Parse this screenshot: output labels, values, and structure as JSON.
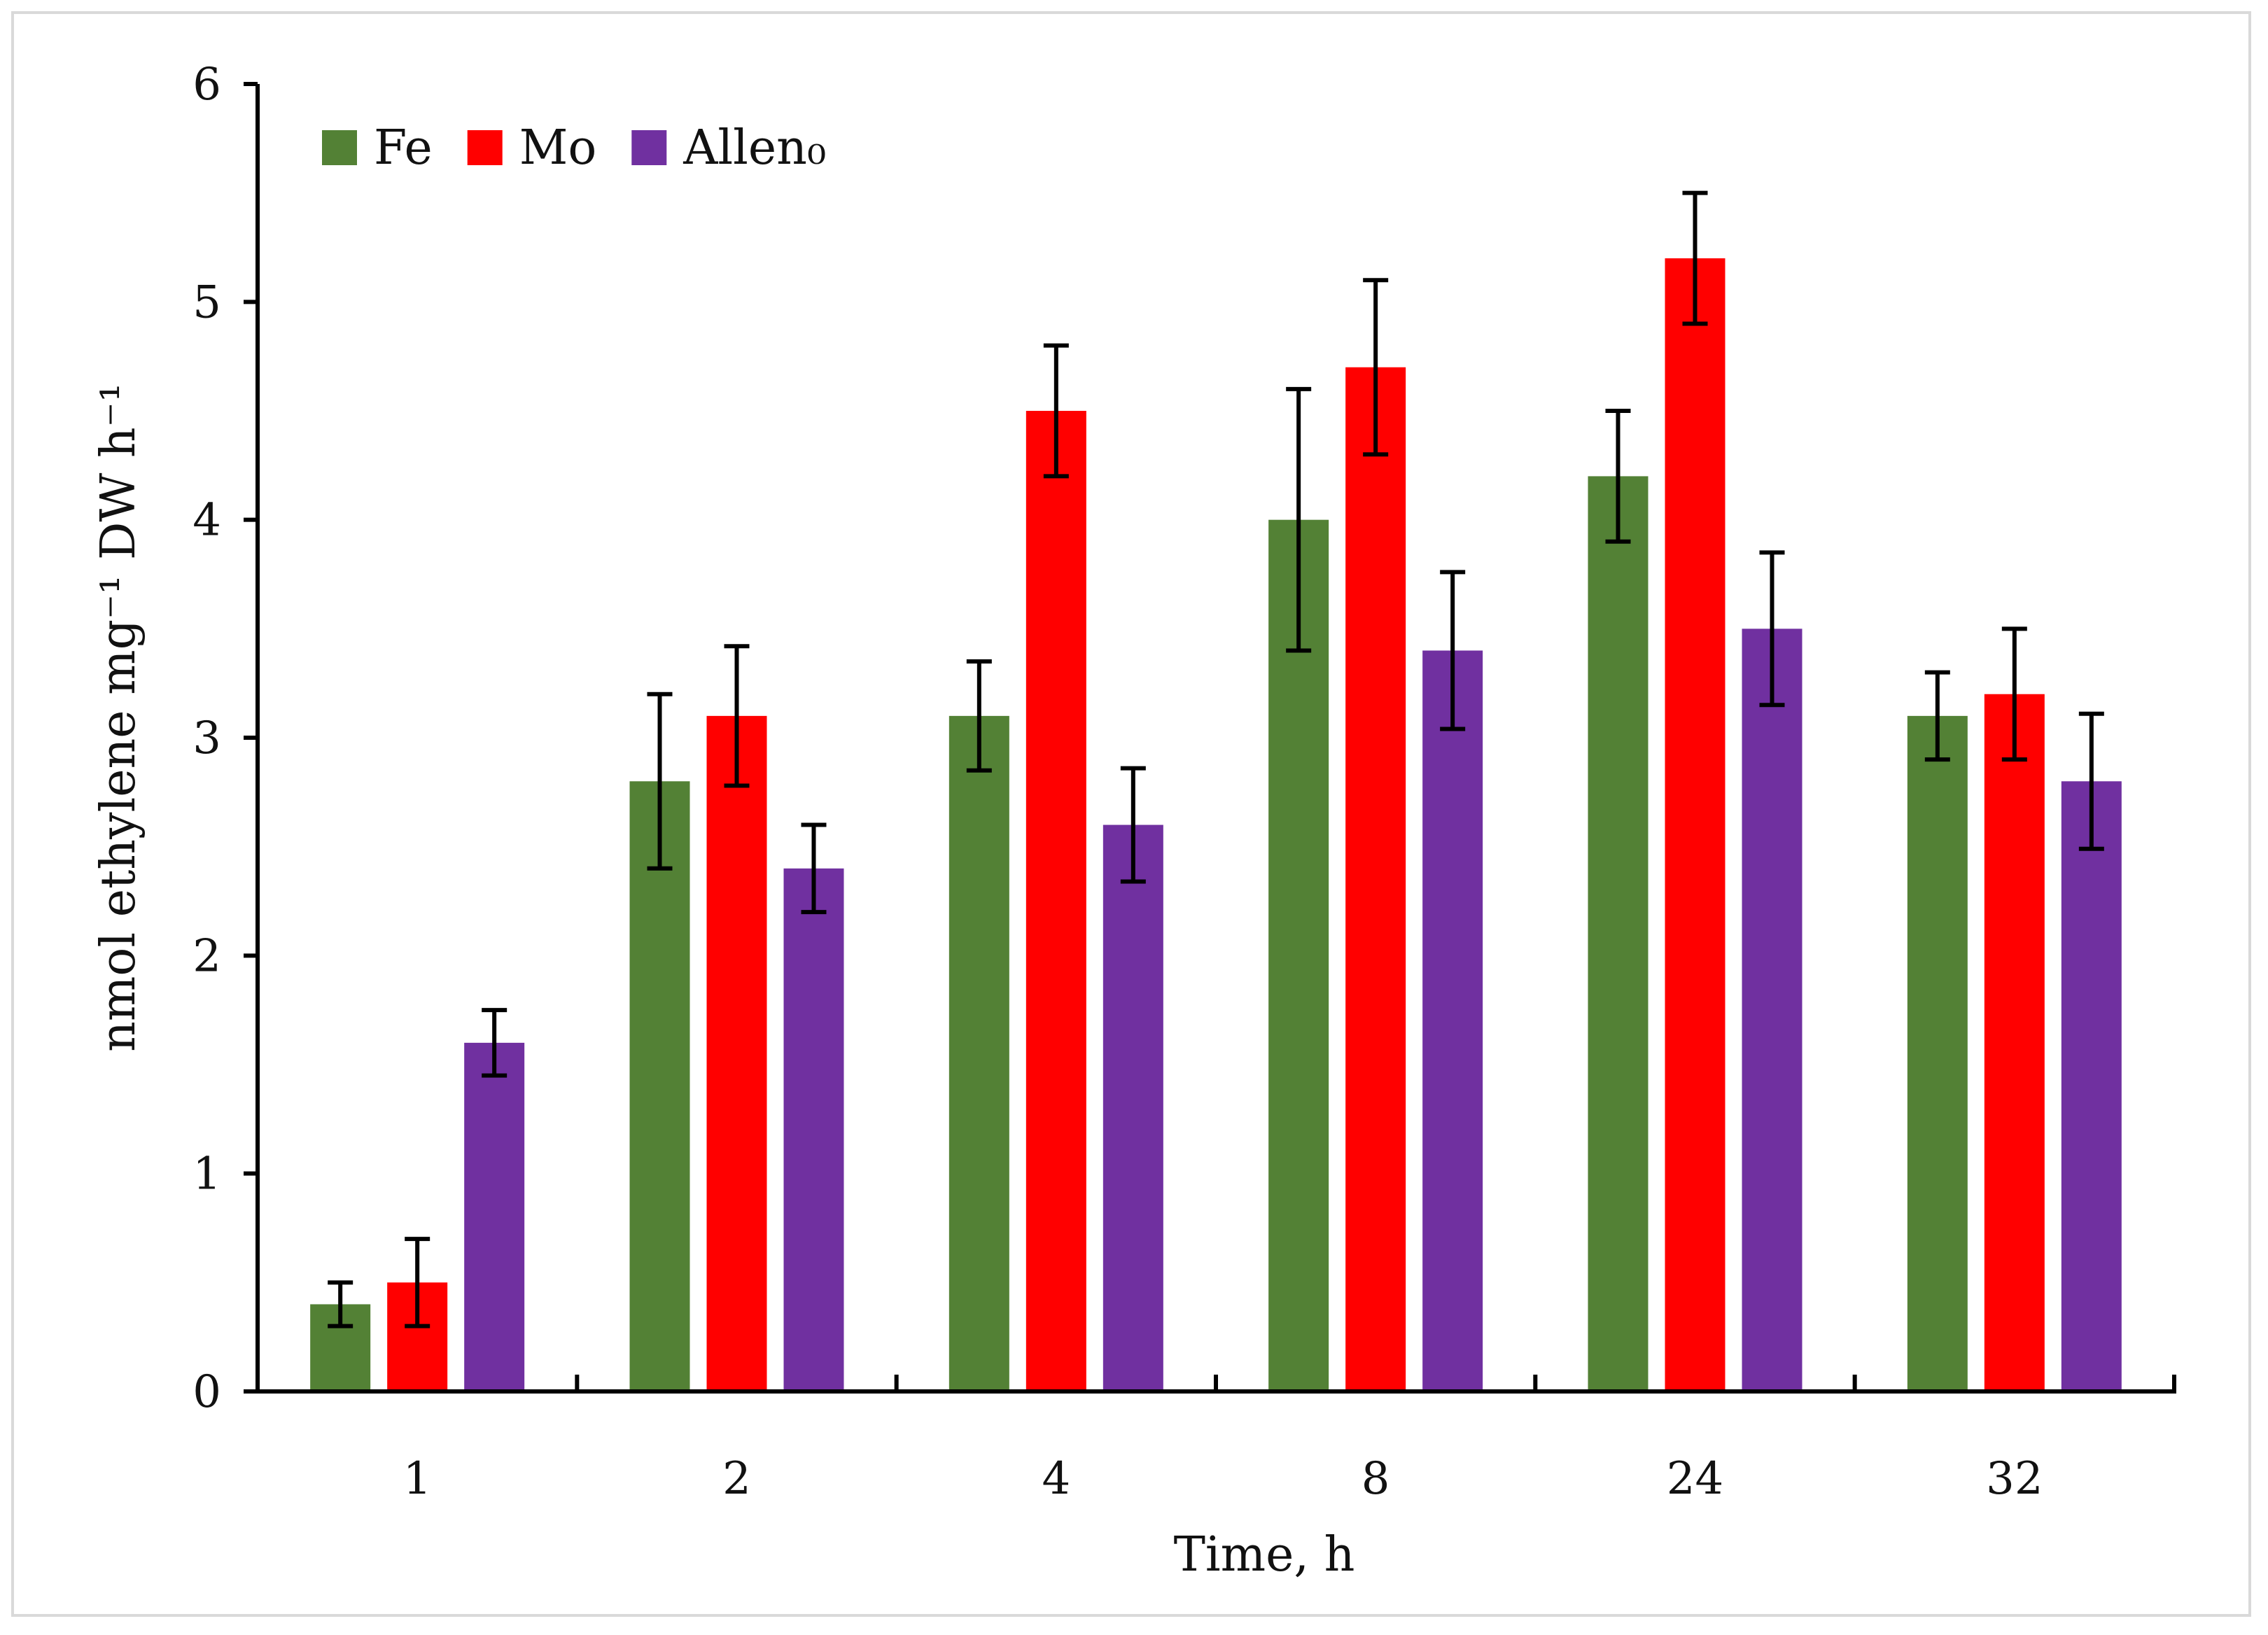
{
  "chart_data": {
    "type": "bar",
    "title": "",
    "xlabel": "Time, h",
    "ylabel": "nmol ethylene mg⁻¹ DW h⁻¹",
    "ylim": [
      0,
      6
    ],
    "yticks": [
      0,
      1,
      2,
      3,
      4,
      5,
      6
    ],
    "categories": [
      "1",
      "2",
      "4",
      "8",
      "24",
      "32"
    ],
    "legend_position": "top-left",
    "series": [
      {
        "name": "Fe",
        "color": "#538135",
        "values": [
          0.4,
          2.8,
          3.1,
          4.0,
          4.2,
          3.1
        ],
        "errors": [
          0.1,
          0.4,
          0.25,
          0.6,
          0.3,
          0.2
        ]
      },
      {
        "name": "Mo",
        "color": "#ff0000",
        "values": [
          0.5,
          3.1,
          4.5,
          4.7,
          5.2,
          3.2
        ],
        "errors": [
          0.2,
          0.32,
          0.3,
          0.4,
          0.3,
          0.3
        ]
      },
      {
        "name": "Allen₀",
        "color": "#7030a0",
        "values": [
          1.6,
          2.4,
          2.6,
          3.4,
          3.5,
          2.8
        ],
        "errors": [
          0.15,
          0.2,
          0.26,
          0.36,
          0.35,
          0.31
        ]
      }
    ]
  }
}
